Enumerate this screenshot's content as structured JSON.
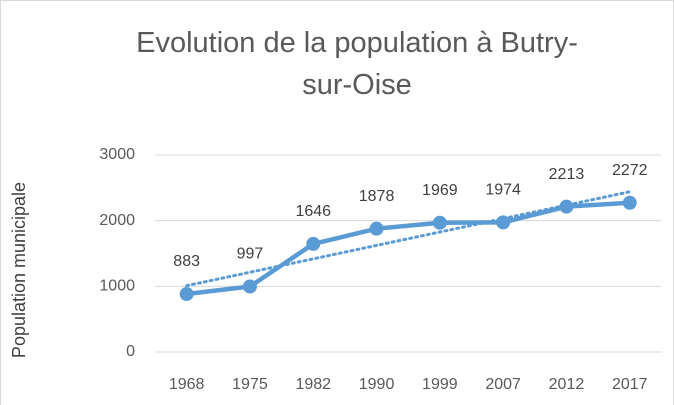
{
  "chart_data": {
    "type": "line",
    "title": "Evolution de la population à Butry-sur-Oise",
    "y_label": "Population municipale",
    "categories": [
      "1968",
      "1975",
      "1982",
      "1990",
      "1999",
      "2007",
      "2012",
      "2017"
    ],
    "values": [
      883,
      997,
      1646,
      1878,
      1969,
      1974,
      2213,
      2272
    ],
    "trend": [
      1010,
      2440
    ],
    "color": "#5b9bd5",
    "ylim": [
      0,
      3000
    ],
    "yticks": [
      0,
      1000,
      2000,
      3000
    ],
    "grid": true
  }
}
